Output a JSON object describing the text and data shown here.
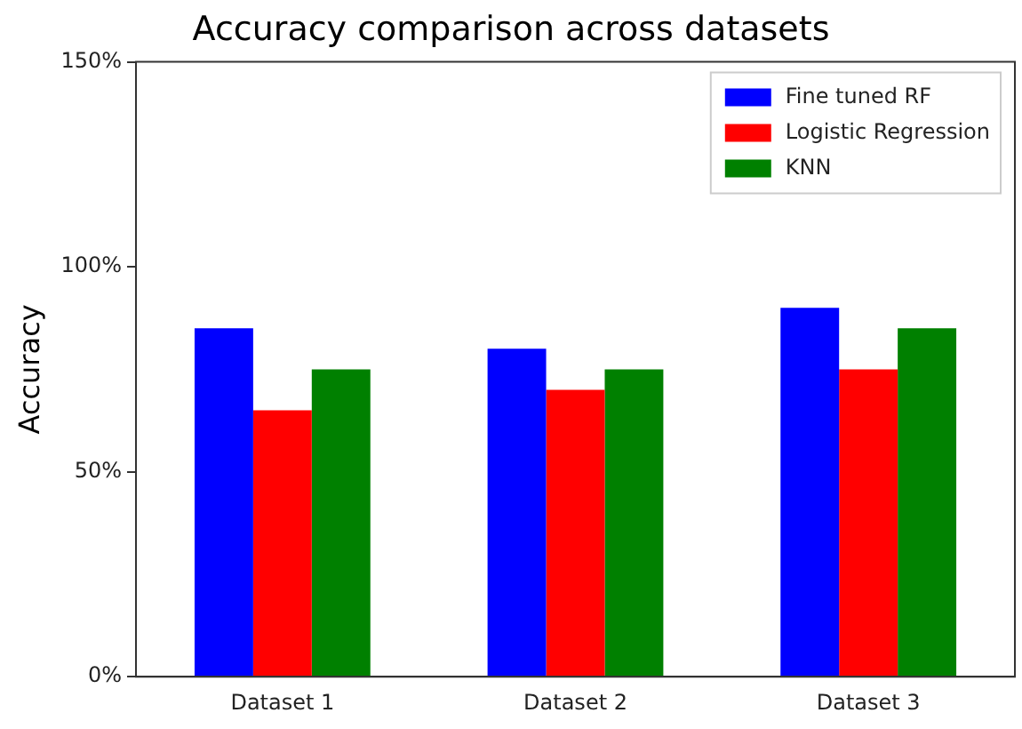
{
  "chart_data": {
    "type": "bar",
    "title": "Accuracy comparison across datasets",
    "ylabel": "Accuracy",
    "categories": [
      "Dataset 1",
      "Dataset 2",
      "Dataset 3"
    ],
    "series": [
      {
        "name": "Fine tuned RF",
        "color": "#0000ff",
        "values": [
          85,
          80,
          90
        ]
      },
      {
        "name": "Logistic Regression",
        "color": "#ff0000",
        "values": [
          65,
          70,
          75
        ]
      },
      {
        "name": "KNN",
        "color": "#008000",
        "values": [
          75,
          75,
          85
        ]
      }
    ],
    "ylim": [
      0,
      150
    ],
    "yticks": [
      {
        "value": 0,
        "label": "0%"
      },
      {
        "value": 50,
        "label": "50%"
      },
      {
        "value": 100,
        "label": "100%"
      },
      {
        "value": 150,
        "label": "150%"
      }
    ],
    "grid": false,
    "legend": "top right"
  }
}
